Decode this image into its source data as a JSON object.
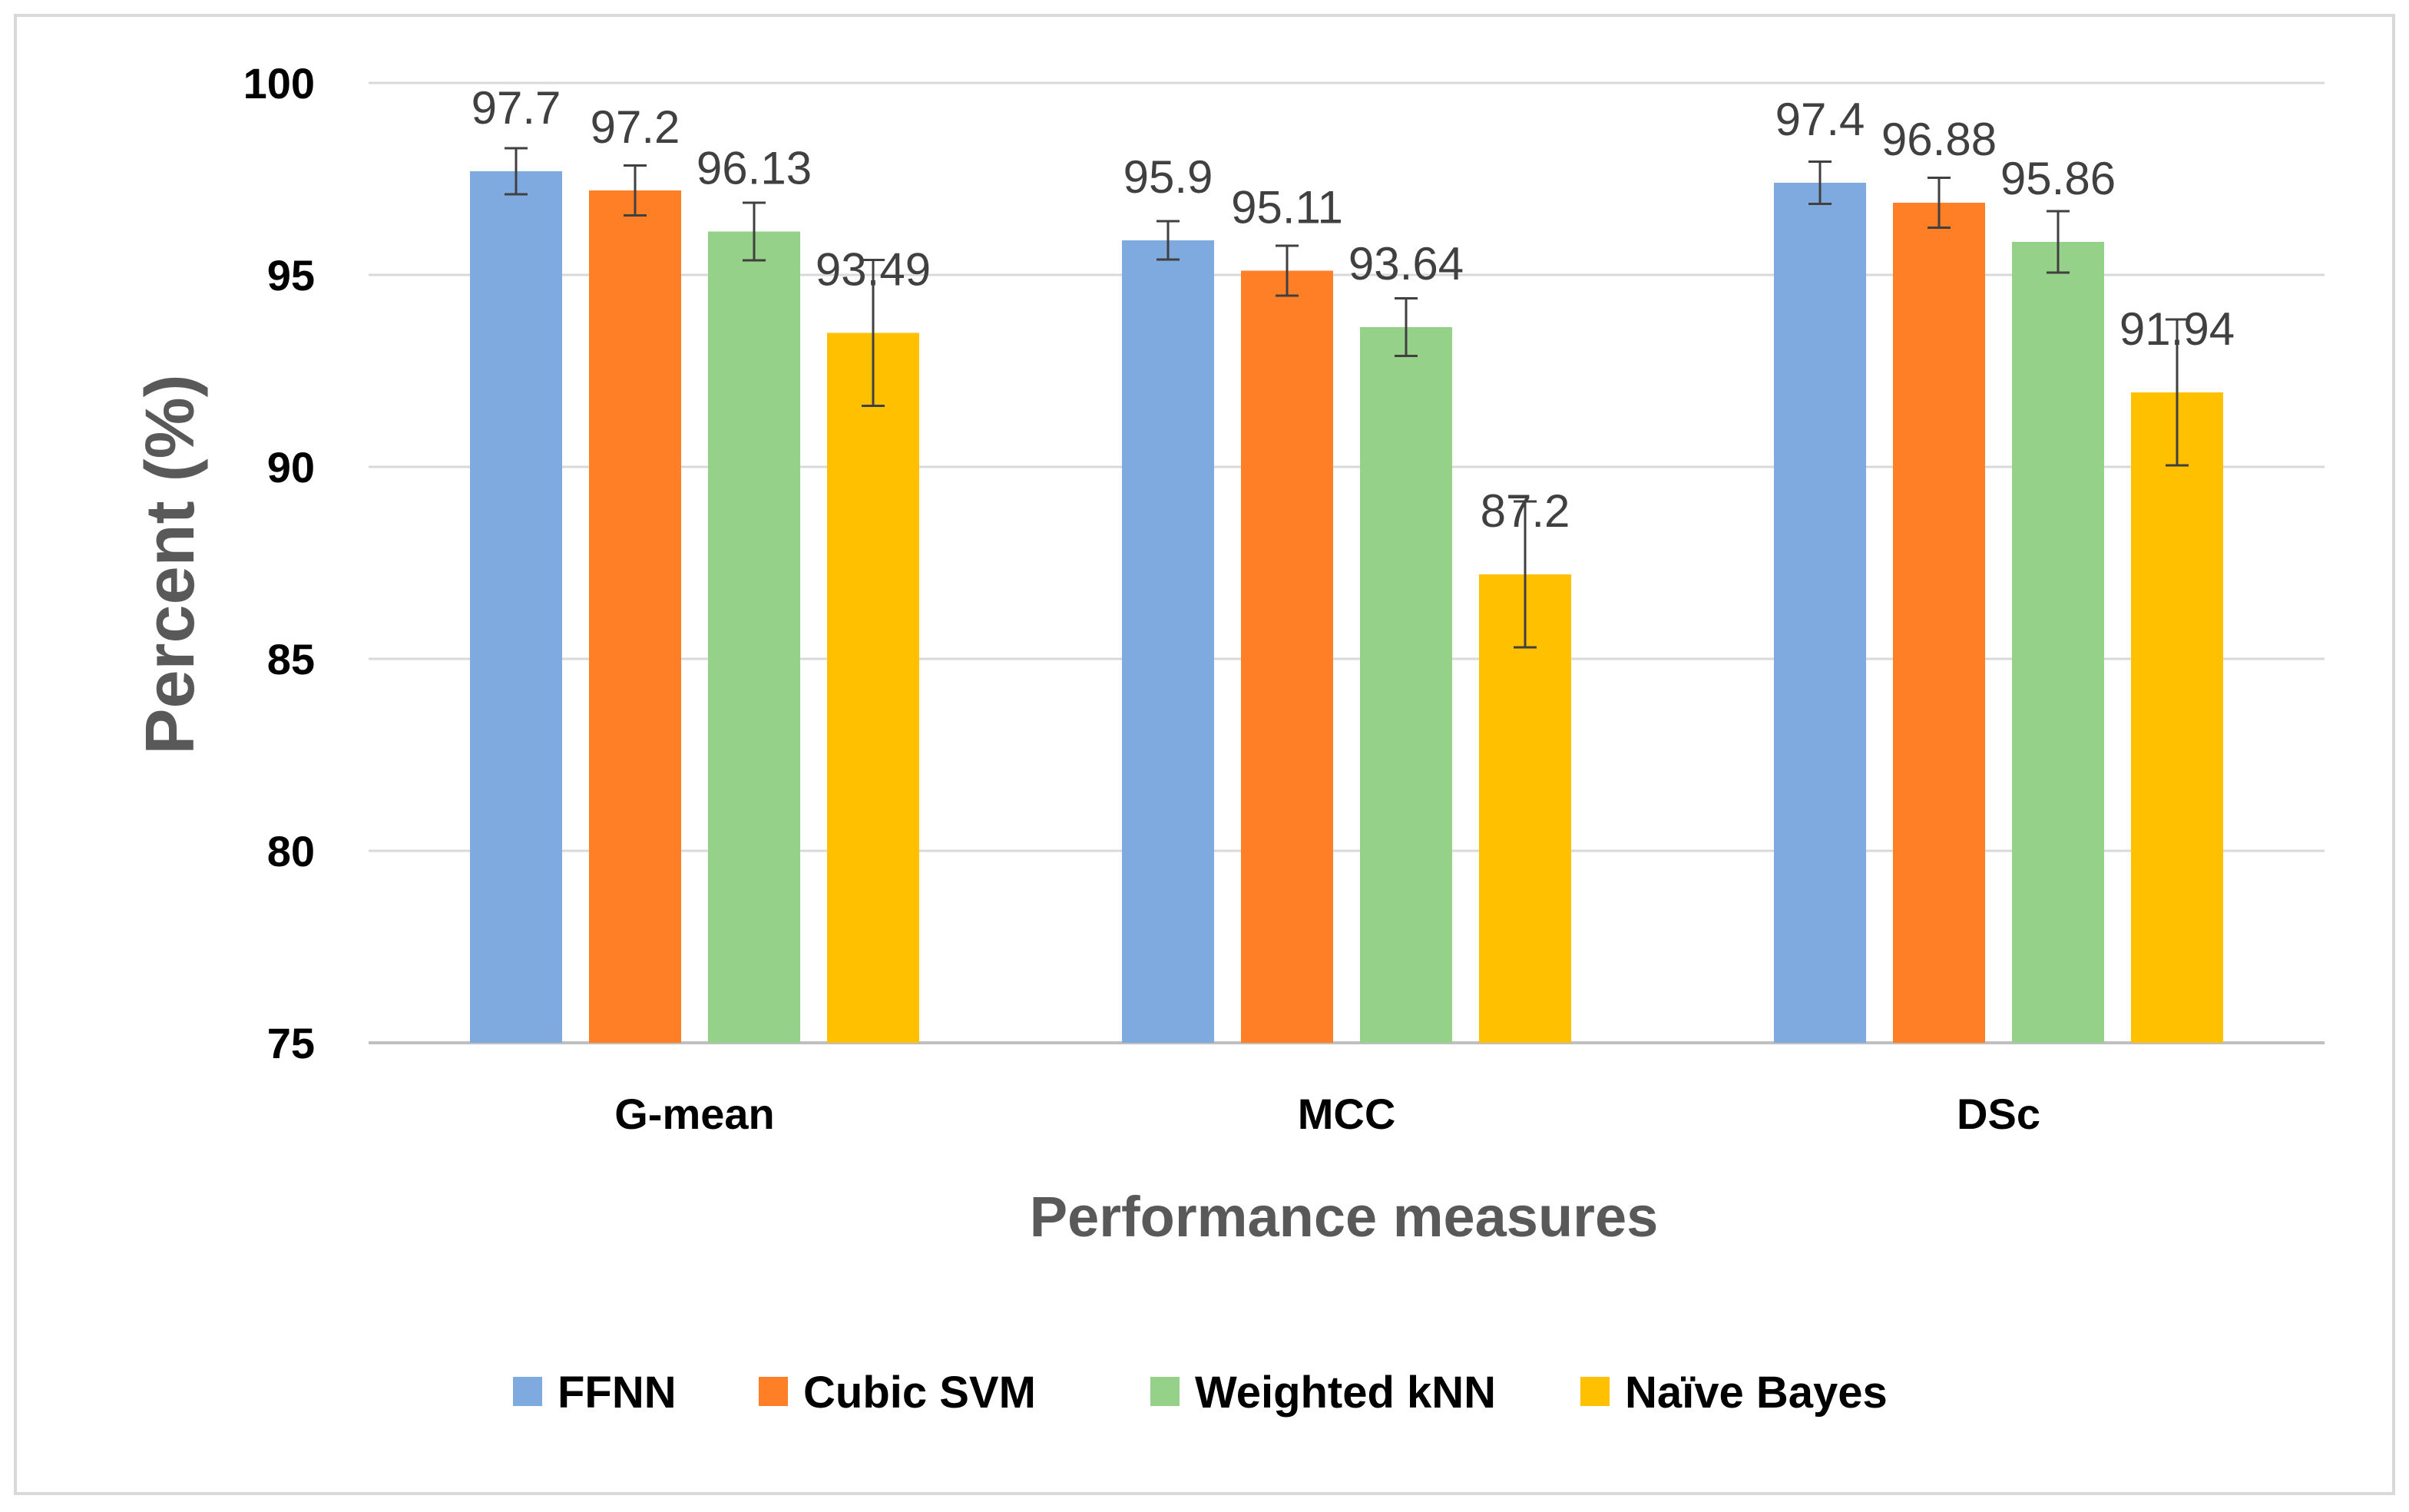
{
  "chart_data": {
    "type": "bar",
    "title": "",
    "xlabel": "Performance measures",
    "ylabel": "Percent (%)",
    "categories": [
      "G-mean",
      "MCC",
      "DSc"
    ],
    "ylim": [
      75,
      100
    ],
    "yticks": [
      75,
      80,
      85,
      90,
      95,
      100
    ],
    "grid": true,
    "legend_position": "bottom",
    "series": [
      {
        "name": "FFNN",
        "color": "#7FAADF",
        "values": [
          97.7,
          95.9,
          97.4
        ],
        "labels": [
          "97.7",
          "95.9",
          "97.4"
        ],
        "errors": [
          0.6,
          0.5,
          0.55
        ]
      },
      {
        "name": "Cubic SVM",
        "color": "#FF7F27",
        "values": [
          97.2,
          95.11,
          96.88
        ],
        "labels": [
          "97.2",
          "95.11",
          "96.88"
        ],
        "errors": [
          0.65,
          0.65,
          0.65
        ]
      },
      {
        "name": "Weighted kNN",
        "color": "#96D18A",
        "values": [
          96.13,
          93.64,
          95.86
        ],
        "labels": [
          "96.13",
          "93.64",
          "95.86"
        ],
        "errors": [
          0.75,
          0.75,
          0.8
        ]
      },
      {
        "name": "Naïve Bayes",
        "color": "#FFC000",
        "values": [
          93.49,
          87.2,
          91.94
        ],
        "labels": [
          "93.49",
          "87.2",
          "91.94"
        ],
        "errors": [
          1.9,
          1.9,
          1.9
        ]
      }
    ]
  }
}
